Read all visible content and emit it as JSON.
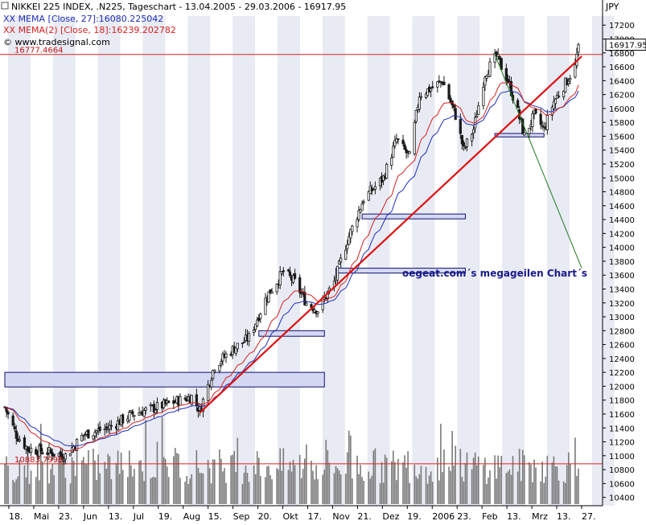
{
  "header": {
    "title_line": "NIKKEI 225 INDEX, .N225, Tageschart - 13.04.2005 - 29.03.2006 - 16917.95",
    "mema1": "XX MEMA [Close, 27]:16080.225042",
    "mema2": "XX MEMA(2) [Close, 18]:16239.202782",
    "source": "© www.tradesignal.com",
    "currency": "JPY"
  },
  "colors": {
    "bg": "#ffffff",
    "band": "#e8ebf3",
    "candle": "#1a1a1a",
    "mema1": "#1f2fb8",
    "mema2": "#d42020",
    "trend": "#e01010",
    "down_trend": "#1f7a1f",
    "hline": "#e02020",
    "box_fill": "#d4d8f2",
    "box_stroke": "#101070",
    "volume": "#7a7a7a",
    "annotation": "#1a1a8c"
  },
  "price_levels": {
    "upper": {
      "value": 16777.4664,
      "label": "16777.4664"
    },
    "lower": {
      "value": 10883.7998,
      "label": "10883.7998"
    },
    "last": {
      "value": 16917.95,
      "label": "16917.95"
    }
  },
  "annotation": "oegeat.com´s megageilen Chart´s",
  "chart_data": {
    "type": "candlestick",
    "title": "NIKKEI 225 INDEX, .N225, Tageschart - 13.04.2005 - 29.03.2006 - 16917.95",
    "ylabel": "JPY",
    "ylim": [
      10280,
      17330
    ],
    "y_ticks": [
      10400,
      10600,
      10800,
      11000,
      11200,
      11400,
      11600,
      11800,
      12000,
      12200,
      12400,
      12600,
      12800,
      13000,
      13200,
      13400,
      13600,
      13800,
      14000,
      14200,
      14400,
      14600,
      14800,
      15000,
      15200,
      15400,
      15600,
      15800,
      16000,
      16200,
      16400,
      16600,
      16800,
      17000,
      17200
    ],
    "x_tick_labels": [
      "18.",
      "Mai",
      "23.",
      "Jun",
      "13.",
      "Jul",
      "19.",
      "Aug",
      "15.",
      "Sep",
      "20.",
      "Okt",
      "17.",
      "Nov",
      "21.",
      "Dez",
      "19.",
      "2006",
      "23.",
      "Feb",
      "13.",
      "Mrz",
      "13.",
      "27."
    ],
    "date_range": [
      "2005-04-13",
      "2006-03-29"
    ],
    "price_keypoints": [
      [
        "2005-04-13",
        11700
      ],
      [
        "2005-04-20",
        11300
      ],
      [
        "2005-04-27",
        11100
      ],
      [
        "2005-05-10",
        11050
      ],
      [
        "2005-05-20",
        11000
      ],
      [
        "2005-05-31",
        11300
      ],
      [
        "2005-06-15",
        11400
      ],
      [
        "2005-06-30",
        11600
      ],
      [
        "2005-07-15",
        11700
      ],
      [
        "2005-07-29",
        11800
      ],
      [
        "2005-08-05",
        11850
      ],
      [
        "2005-08-10",
        11650
      ],
      [
        "2005-08-19",
        12300
      ],
      [
        "2005-08-31",
        12550
      ],
      [
        "2005-09-09",
        12700
      ],
      [
        "2005-09-20",
        13300
      ],
      [
        "2005-09-30",
        13650
      ],
      [
        "2005-10-07",
        13500
      ],
      [
        "2005-10-14",
        13200
      ],
      [
        "2005-10-21",
        13100
      ],
      [
        "2005-10-31",
        13500
      ],
      [
        "2005-11-08",
        14100
      ],
      [
        "2005-11-18",
        14700
      ],
      [
        "2005-11-30",
        15000
      ],
      [
        "2005-12-08",
        15550
      ],
      [
        "2005-12-16",
        15300
      ],
      [
        "2005-12-22",
        16200
      ],
      [
        "2005-12-30",
        16300
      ],
      [
        "2006-01-05",
        16400
      ],
      [
        "2006-01-13",
        15900
      ],
      [
        "2006-01-18",
        15400
      ],
      [
        "2006-01-24",
        15700
      ],
      [
        "2006-01-31",
        16500
      ],
      [
        "2006-02-07",
        16750
      ],
      [
        "2006-02-14",
        16400
      ],
      [
        "2006-02-20",
        15950
      ],
      [
        "2006-02-24",
        15600
      ],
      [
        "2006-03-02",
        15900
      ],
      [
        "2006-03-08",
        15700
      ],
      [
        "2006-03-14",
        16100
      ],
      [
        "2006-03-22",
        16400
      ],
      [
        "2006-03-27",
        16600
      ],
      [
        "2006-03-29",
        16917.95
      ]
    ],
    "series": [
      {
        "name": "XX MEMA [Close, 27]:16080.225042",
        "type": "line",
        "source": "close",
        "period": 27
      },
      {
        "name": "XX MEMA(2) [Close, 18]:16239.202782",
        "type": "line",
        "source": "close",
        "period": 18
      }
    ],
    "trendlines": [
      {
        "kind": "uptrend",
        "from": [
          "2005-08-10",
          11620
        ],
        "to": [
          "2006-03-31",
          16750
        ]
      },
      {
        "kind": "downtrend",
        "from": [
          "2006-02-06",
          16777
        ],
        "to": [
          "2006-03-31",
          13700
        ]
      }
    ],
    "horizontal_lines": [
      16777.4664,
      10883.7998
    ],
    "zones": [
      {
        "from": "2005-04-13",
        "to": "2005-10-25",
        "low": 11990,
        "high": 12200
      },
      {
        "from": "2005-09-15",
        "to": "2005-10-25",
        "low": 12720,
        "high": 12800
      },
      {
        "from": "2005-11-01",
        "to": "2006-01-19",
        "low": 13630,
        "high": 13700
      },
      {
        "from": "2005-11-17",
        "to": "2006-01-19",
        "low": 14410,
        "high": 14480
      },
      {
        "from": "2006-02-06",
        "to": "2006-03-08",
        "low": 15590,
        "high": 15640
      }
    ],
    "volume": {
      "shown": true,
      "scale": "unlabeled"
    },
    "grid": "alternating vertical bands",
    "legend": "top-left"
  }
}
